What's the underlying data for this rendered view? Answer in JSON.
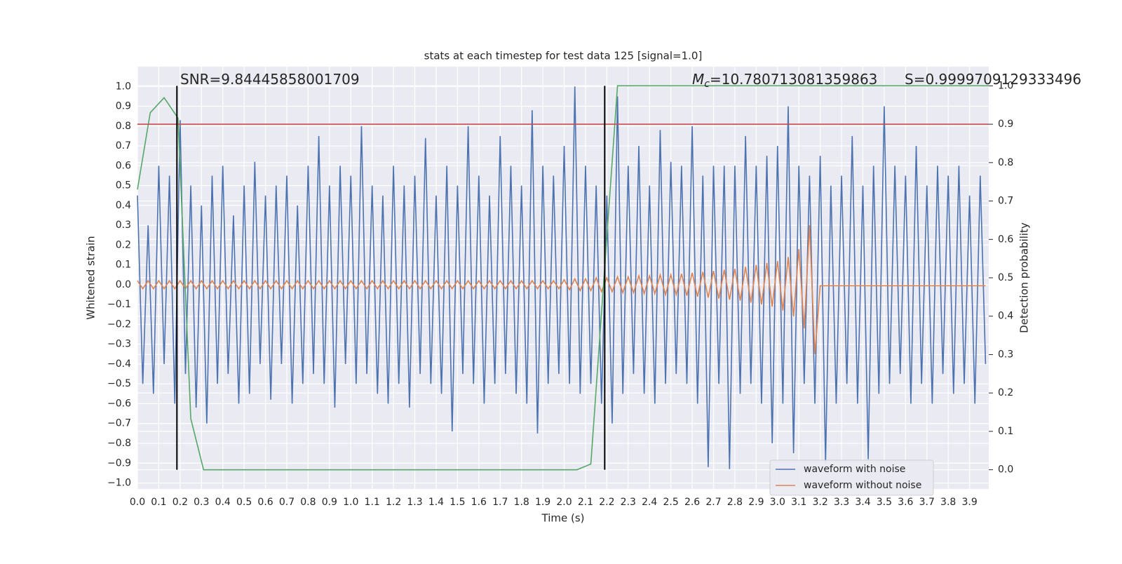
{
  "chart_data": {
    "type": "line",
    "title": "stats at each timestep for test data 125 [signal=1.0]",
    "x_label": "Time (s)",
    "y_label": "Whitened strain",
    "y2_label": "Detection probability",
    "xlim": [
      0,
      3.99
    ],
    "ylim": [
      -1.03,
      1.1
    ],
    "y2lim": [
      -0.05,
      1.05
    ],
    "grid": true,
    "legend": "lower right",
    "xticks": [
      {
        "value": 0,
        "label": "0.0"
      },
      0.1,
      0.2,
      0.3,
      0.4,
      0.5,
      0.6,
      0.7,
      0.8,
      0.9,
      {
        "value": 1,
        "label": "1.0"
      },
      1.1,
      1.2,
      1.3,
      1.4,
      1.5,
      1.6,
      1.7,
      1.8,
      1.9,
      {
        "value": 2,
        "label": "2.0"
      },
      2.1,
      2.2,
      2.3,
      2.4,
      2.5,
      2.6,
      2.7,
      2.8,
      2.9,
      {
        "value": 3,
        "label": "3.0"
      },
      3.1,
      3.2,
      3.3,
      3.4,
      3.5,
      3.6,
      3.7,
      3.8,
      3.9
    ],
    "yticks": [
      {
        "value": -1,
        "label": "−1.0"
      },
      {
        "value": -0.9,
        "label": "−0.9"
      },
      {
        "value": -0.8,
        "label": "−0.8"
      },
      {
        "value": -0.7,
        "label": "−0.7"
      },
      {
        "value": -0.6,
        "label": "−0.6"
      },
      {
        "value": -0.5,
        "label": "−0.5"
      },
      {
        "value": -0.4,
        "label": "−0.4"
      },
      {
        "value": -0.3,
        "label": "−0.3"
      },
      {
        "value": -0.2,
        "label": "−0.2"
      },
      {
        "value": -0.1,
        "label": "−0.1"
      },
      {
        "value": 0,
        "label": "0.0"
      },
      0.1,
      0.2,
      0.3,
      0.4,
      0.5,
      0.6,
      0.7,
      0.8,
      0.9,
      {
        "value": 1,
        "label": "1.0"
      }
    ],
    "y2ticks": [
      {
        "value": 0,
        "label": "0.0"
      },
      0.1,
      0.2,
      0.3,
      0.4,
      0.5,
      0.6,
      0.7,
      0.8,
      0.9,
      {
        "value": 1,
        "label": "1.0"
      }
    ],
    "x": [
      0,
      0.025,
      0.05,
      0.075,
      0.1,
      0.125,
      0.15,
      0.175,
      0.2,
      0.225,
      0.25,
      0.275,
      0.3,
      0.325,
      0.35,
      0.375,
      0.4,
      0.425,
      0.45,
      0.475,
      0.5,
      0.525,
      0.55,
      0.575,
      0.6,
      0.625,
      0.65,
      0.675,
      0.7,
      0.725,
      0.75,
      0.775,
      0.8,
      0.825,
      0.85,
      0.875,
      0.9,
      0.925,
      0.95,
      0.975,
      1,
      1.025,
      1.05,
      1.075,
      1.1,
      1.125,
      1.15,
      1.175,
      1.2,
      1.225,
      1.25,
      1.275,
      1.3,
      1.325,
      1.35,
      1.375,
      1.4,
      1.425,
      1.45,
      1.475,
      1.5,
      1.525,
      1.55,
      1.575,
      1.6,
      1.625,
      1.65,
      1.675,
      1.7,
      1.725,
      1.75,
      1.775,
      1.8,
      1.825,
      1.85,
      1.875,
      1.9,
      1.925,
      1.95,
      1.975,
      2,
      2.025,
      2.05,
      2.075,
      2.1,
      2.125,
      2.15,
      2.175,
      2.2,
      2.225,
      2.25,
      2.275,
      2.3,
      2.325,
      2.35,
      2.375,
      2.4,
      2.425,
      2.45,
      2.475,
      2.5,
      2.525,
      2.55,
      2.575,
      2.6,
      2.625,
      2.65,
      2.675,
      2.7,
      2.725,
      2.75,
      2.775,
      2.8,
      2.825,
      2.85,
      2.875,
      2.9,
      2.925,
      2.95,
      2.975,
      3,
      3.025,
      3.05,
      3.075,
      3.1,
      3.125,
      3.15,
      3.175,
      3.2,
      3.225,
      3.25,
      3.275,
      3.3,
      3.325,
      3.35,
      3.375,
      3.4,
      3.425,
      3.45,
      3.475,
      3.5,
      3.525,
      3.55,
      3.575,
      3.6,
      3.625,
      3.65,
      3.675,
      3.7,
      3.725,
      3.75,
      3.775,
      3.8,
      3.825,
      3.85,
      3.875,
      3.9,
      3.925,
      3.95,
      3.975
    ],
    "series": [
      {
        "name": "waveform with noise",
        "color": "#4c72b0",
        "values": [
          0.45,
          -0.5,
          0.3,
          -0.55,
          0.6,
          -0.4,
          0.55,
          -0.6,
          0.83,
          -0.45,
          0.5,
          -0.62,
          0.4,
          -0.7,
          0.55,
          -0.5,
          0.6,
          -0.45,
          0.35,
          -0.6,
          0.5,
          -0.55,
          0.62,
          -0.4,
          0.45,
          -0.58,
          0.5,
          -0.4,
          0.55,
          -0.6,
          0.4,
          -0.5,
          0.6,
          -0.45,
          0.75,
          -0.5,
          0.5,
          -0.62,
          0.6,
          -0.4,
          0.55,
          -0.5,
          0.8,
          -0.45,
          0.5,
          -0.55,
          0.45,
          -0.6,
          0.6,
          -0.5,
          0.5,
          -0.62,
          0.55,
          -0.45,
          0.74,
          -0.5,
          0.45,
          -0.55,
          0.6,
          -0.74,
          0.5,
          -0.45,
          0.8,
          -0.5,
          0.55,
          -0.6,
          0.45,
          -0.5,
          0.75,
          -0.45,
          0.6,
          -0.55,
          0.5,
          -0.6,
          0.88,
          -0.75,
          0.6,
          -0.5,
          0.55,
          -0.45,
          0.7,
          -0.5,
          1.0,
          -0.55,
          0.6,
          -0.5,
          0.5,
          -0.6,
          0.45,
          -0.7,
          0.95,
          -0.55,
          0.6,
          -0.45,
          0.7,
          -0.55,
          0.5,
          -0.6,
          0.78,
          -0.5,
          0.62,
          -0.45,
          0.6,
          -0.5,
          0.8,
          -0.6,
          0.55,
          -0.92,
          0.6,
          -0.5,
          0.6,
          -0.93,
          0.6,
          -0.55,
          0.75,
          -0.5,
          0.6,
          -0.6,
          0.65,
          -0.8,
          0.7,
          -0.6,
          0.9,
          -0.85,
          0.6,
          -0.5,
          0.55,
          -0.6,
          0.65,
          -0.9,
          0.5,
          -0.6,
          0.55,
          -0.5,
          0.75,
          -0.6,
          0.5,
          -0.88,
          0.6,
          -0.55,
          0.9,
          -0.5,
          0.6,
          -0.45,
          0.55,
          -0.6,
          0.7,
          -0.5,
          0.5,
          -0.6,
          0.6,
          -0.45,
          0.55,
          -0.55,
          0.6,
          -0.5,
          0.45,
          -0.6,
          0.55,
          -0.4
        ]
      },
      {
        "name": "waveform without noise",
        "color": "#dd8452",
        "values": [
          0.02,
          -0.02,
          0.02,
          -0.02,
          0.02,
          -0.02,
          0.02,
          -0.02,
          0.02,
          -0.02,
          0.02,
          -0.02,
          0.02,
          -0.02,
          0.02,
          -0.02,
          0.02,
          -0.02,
          0.02,
          -0.02,
          0.02,
          -0.02,
          0.02,
          -0.02,
          0.02,
          -0.02,
          0.02,
          -0.02,
          0.02,
          -0.02,
          0.02,
          -0.02,
          0.02,
          -0.02,
          0.02,
          -0.02,
          0.02,
          -0.02,
          0.02,
          -0.02,
          0.02,
          -0.02,
          0.02,
          -0.02,
          0.02,
          -0.02,
          0.02,
          -0.02,
          0.02,
          -0.02,
          0.02,
          -0.02,
          0.02,
          -0.02,
          0.02,
          -0.02,
          0.02,
          -0.02,
          0.02,
          -0.02,
          0.02,
          -0.02,
          0.02,
          -0.02,
          0.02,
          -0.02,
          0.02,
          -0.02,
          0.02,
          -0.02,
          0.02,
          -0.02,
          0.02,
          -0.02,
          0.02,
          -0.02,
          0.02,
          -0.02,
          0.02,
          -0.02,
          0.025,
          -0.025,
          0.03,
          -0.03,
          0.03,
          -0.03,
          0.035,
          -0.035,
          0.035,
          -0.035,
          0.04,
          -0.04,
          0.04,
          -0.04,
          0.045,
          -0.045,
          0.045,
          -0.045,
          0.05,
          -0.05,
          0.05,
          -0.05,
          0.055,
          -0.055,
          0.06,
          -0.06,
          0.065,
          -0.065,
          0.07,
          -0.07,
          0.075,
          -0.075,
          0.08,
          -0.08,
          0.09,
          -0.09,
          0.1,
          -0.1,
          0.11,
          -0.11,
          0.12,
          -0.13,
          0.14,
          -0.16,
          0.18,
          -0.22,
          0.3,
          -0.35,
          -0.005,
          -0.005,
          -0.005,
          -0.005,
          -0.005,
          -0.005,
          -0.005,
          -0.005,
          -0.005,
          -0.005,
          -0.005,
          -0.005,
          -0.005,
          -0.005,
          -0.005,
          -0.005,
          -0.005,
          -0.005,
          -0.005,
          -0.005,
          -0.005,
          -0.005,
          -0.005,
          -0.005,
          -0.005,
          -0.005,
          -0.005,
          -0.005,
          -0.005,
          -0.005,
          -0.005,
          -0.005
        ]
      },
      {
        "color": "#55a868",
        "axis": "y2",
        "x": [
          0,
          0.06,
          0.125,
          0.19,
          0.25,
          0.31,
          2.06,
          2.125,
          2.25,
          3.99
        ],
        "values": [
          0.73,
          0.93,
          0.969,
          0.916,
          0.133,
          0,
          0,
          0.015,
          1,
          1
        ]
      }
    ],
    "threshold": {
      "value": 0.9,
      "axis": "y2",
      "color": "#c44e52"
    },
    "vlines": {
      "x": [
        0.185,
        2.19
      ],
      "y2range": [
        0,
        1
      ],
      "color": "#000000"
    },
    "annotations": [
      {
        "text": "SNR=9.84445858001709"
      },
      {
        "symbol": "M",
        "sub": "c",
        "text": "=10.780713081359863"
      },
      {
        "text": "S=0.9999709129333496"
      }
    ]
  }
}
